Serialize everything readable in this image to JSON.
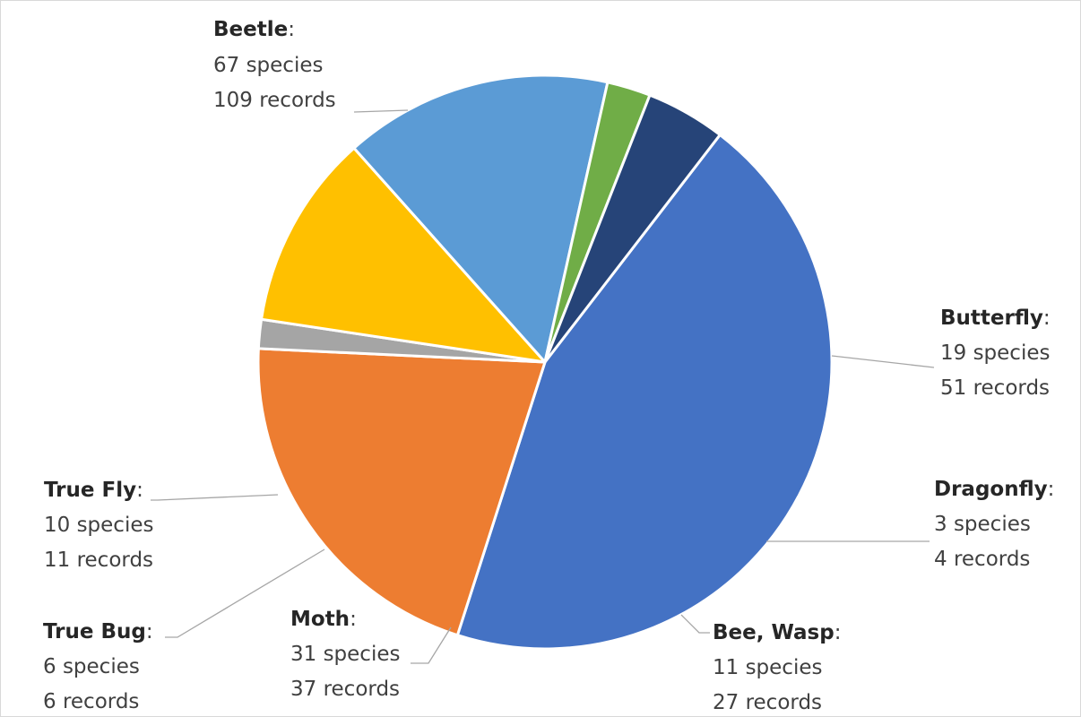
{
  "chart_data": {
    "type": "pie",
    "title": "",
    "slices": [
      {
        "label": "Beetle",
        "species": "67 species",
        "records": "109 records",
        "value": 109,
        "color": "#4472C4"
      },
      {
        "label": "Butterfly",
        "species": "19 species",
        "records": "51 records",
        "value": 51,
        "color": "#ED7D31"
      },
      {
        "label": "Dragonfly",
        "species": "3 species",
        "records": "4 records",
        "value": 4,
        "color": "#A5A5A5"
      },
      {
        "label": "Bee, Wasp",
        "species": "11 species",
        "records": "27 records",
        "value": 27,
        "color": "#FFC000"
      },
      {
        "label": "Moth",
        "species": "31 species",
        "records": "37 records",
        "value": 37,
        "color": "#5B9BD5"
      },
      {
        "label": "True Bug",
        "species": "6 species",
        "records": "6 records",
        "value": 6,
        "color": "#70AD47"
      },
      {
        "label": "True Fly",
        "species": "10 species",
        "records": "11 records",
        "value": 11,
        "color": "#264478"
      }
    ],
    "start_angle_deg": 37.6,
    "direction": "clockwise",
    "legend": "none",
    "data_labels": "outside with leader lines"
  }
}
